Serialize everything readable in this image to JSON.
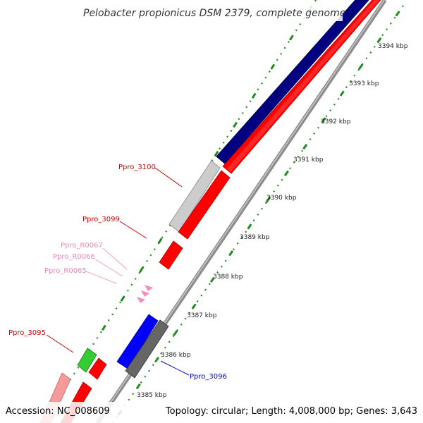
{
  "title": "Pelobacter propionicus DSM 2379, complete genome",
  "footer": {
    "accession": "Accession: NC_008609",
    "summary": "Topology: circular; Length: 4,008,000 bp; Genes: 3,643"
  },
  "colors": {
    "background": "#ffffff",
    "backbone": "#8c8c8c",
    "tick": "#1f8a1f",
    "track_outer": "#000080",
    "track_cds": "#ff0000",
    "cds_gray": "#cccccc",
    "cds_dark_gray": "#666666",
    "cds_blue": "#0000ff",
    "cds_green": "#33cc33",
    "cds_pink": "#f59a9a",
    "rna_pink": "#f48cbf",
    "label_red": "#cc0000",
    "label_pink": "#e888bb",
    "label_blue": "#0000cc"
  },
  "scale_labels": [
    {
      "kbp": 3394,
      "text": "3394 kbp"
    },
    {
      "kbp": 3393,
      "text": "3393 kbp"
    },
    {
      "kbp": 3392,
      "text": "3392 kbp"
    },
    {
      "kbp": 3391,
      "text": "3391 kbp"
    },
    {
      "kbp": 3390,
      "text": "3390 kbp"
    },
    {
      "kbp": 3389,
      "text": "3389 kbp"
    },
    {
      "kbp": 3388,
      "text": "3388 kbp"
    },
    {
      "kbp": 3387,
      "text": "3387 kbp"
    },
    {
      "kbp": 3386,
      "text": "3386 kbp"
    },
    {
      "kbp": 3385,
      "text": "3385 kbp"
    }
  ],
  "gene_labels": [
    {
      "id": "ppro-3100",
      "text": "Ppro_3100",
      "color_key": "label_red"
    },
    {
      "id": "ppro-3099",
      "text": "Ppro_3099",
      "color_key": "label_red"
    },
    {
      "id": "ppro-r0067",
      "text": "Ppro_R0067",
      "color_key": "label_pink"
    },
    {
      "id": "ppro-r0066",
      "text": "Ppro_R0066",
      "color_key": "label_pink"
    },
    {
      "id": "ppro-r0065",
      "text": "Ppro_R0065",
      "color_key": "label_pink"
    },
    {
      "id": "ppro-3095",
      "text": "Ppro_3095",
      "color_key": "label_red"
    },
    {
      "id": "ppro-3096",
      "text": "Ppro_3096",
      "color_key": "label_blue"
    }
  ]
}
